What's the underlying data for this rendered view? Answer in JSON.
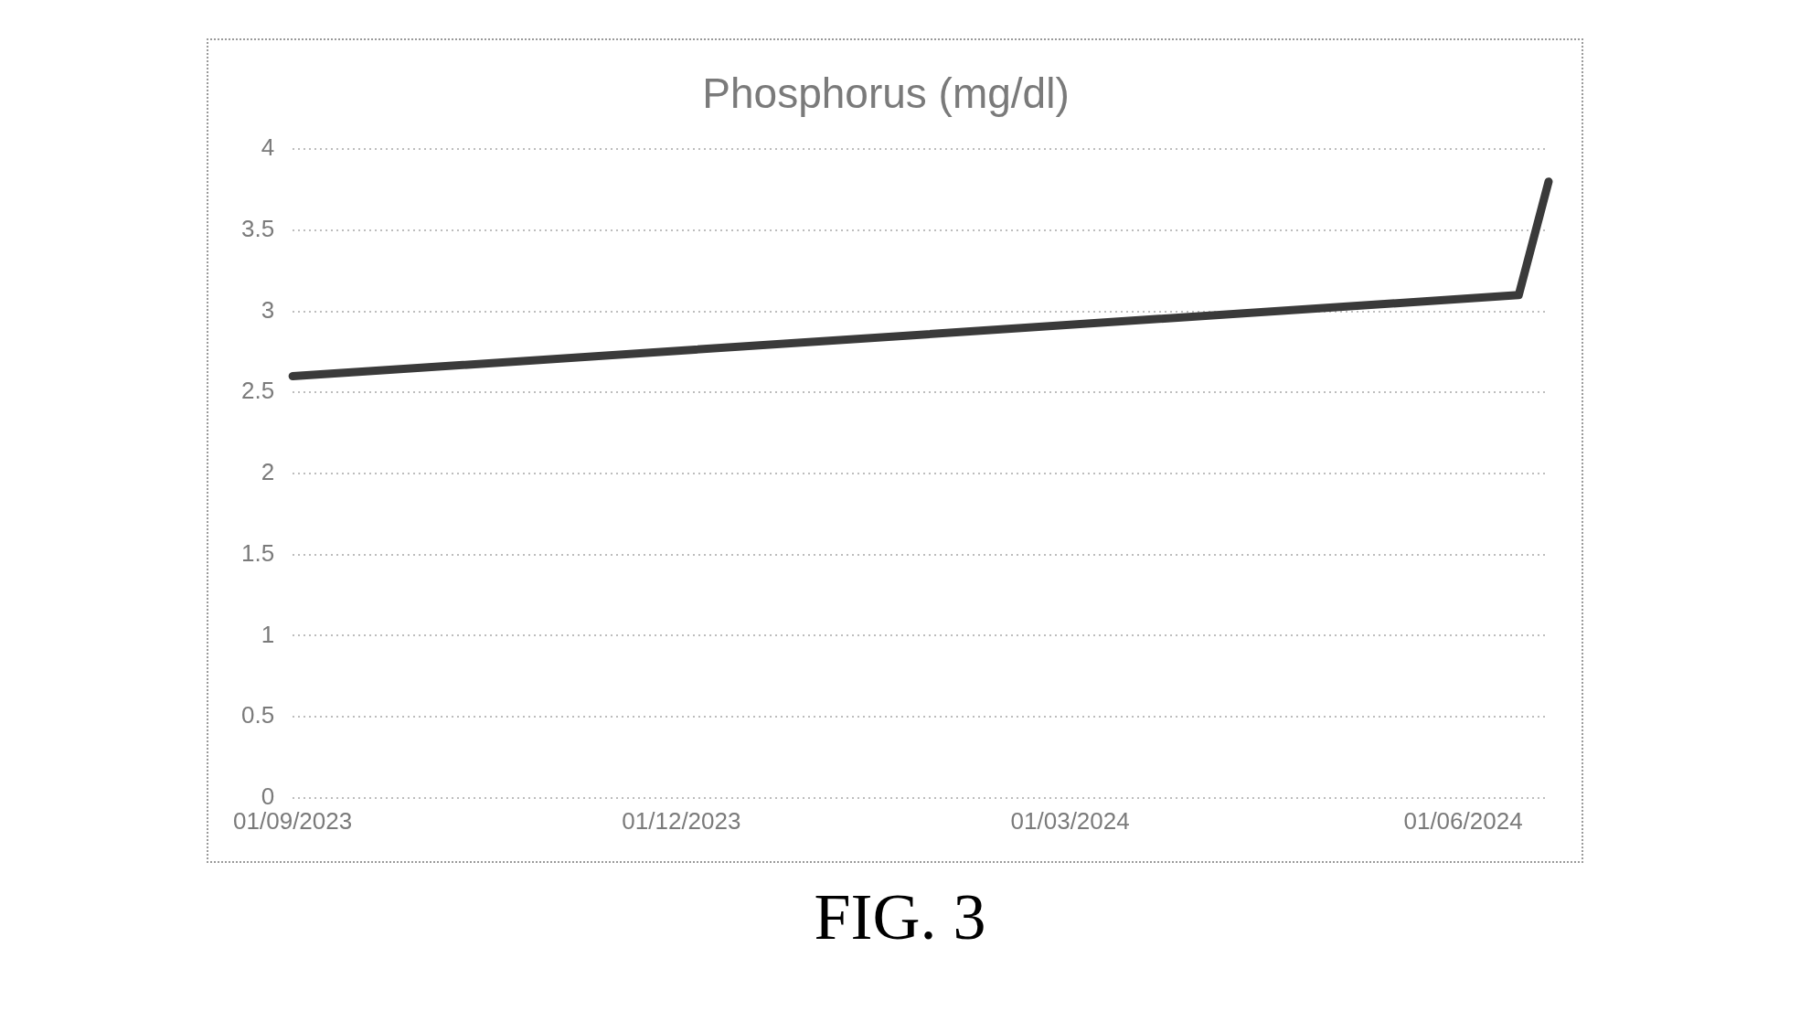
{
  "chart_data": {
    "type": "line",
    "title": "Phosphorus (mg/dl)",
    "x": [
      "2023-09-01",
      "2024-06-14",
      "2024-06-21"
    ],
    "series": [
      {
        "color": "#3a3a3a",
        "values": [
          2.6,
          3.1,
          3.8
        ]
      }
    ],
    "xlim": [
      "2023-09-01",
      "2024-06-21"
    ],
    "xticks": [
      {
        "value": "2023-09-01",
        "label": "01/09/2023"
      },
      {
        "value": "2023-12-01",
        "label": "01/12/2023"
      },
      {
        "value": "2024-03-01",
        "label": "01/03/2024"
      },
      {
        "value": "2024-06-01",
        "label": "01/06/2024"
      }
    ],
    "ylim": [
      0,
      4
    ],
    "yticks": [
      0,
      0.5,
      1,
      1.5,
      2,
      2.5,
      3,
      3.5,
      4
    ],
    "grid": "y",
    "legend": false,
    "marker": "none",
    "line_style": "solid",
    "annotations": [
      "FIG. 3"
    ]
  }
}
